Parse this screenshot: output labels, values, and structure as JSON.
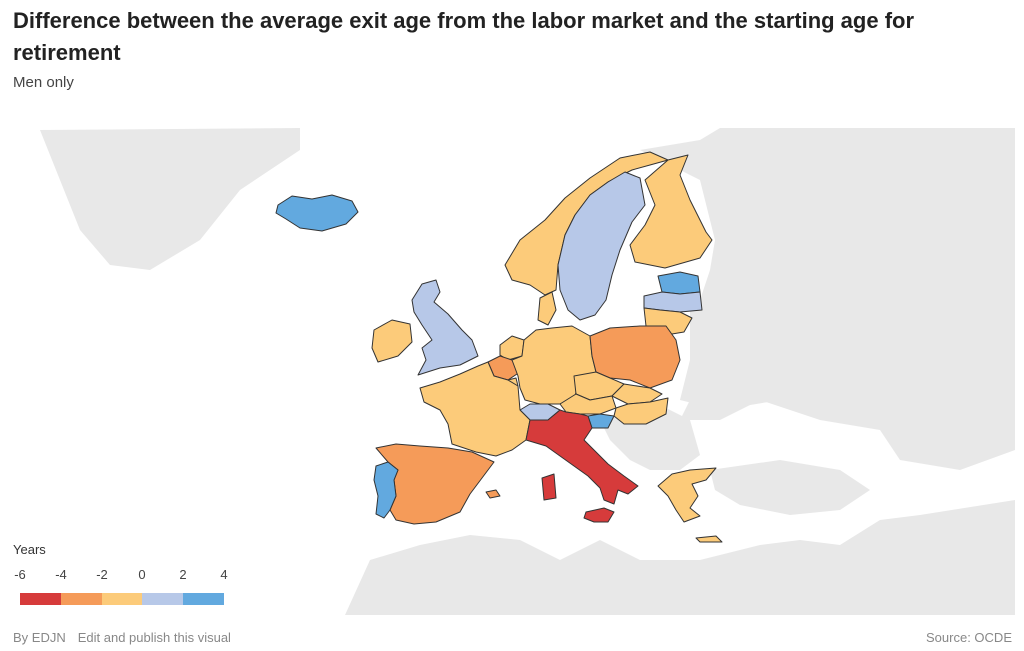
{
  "header": {
    "title": "Difference between the average exit age from the labor market and the starting age for retirement",
    "subtitle": "Men only"
  },
  "legend": {
    "title": "Years",
    "ticks": [
      "-6",
      "-4",
      "-2",
      "0",
      "2",
      "4"
    ],
    "colors": [
      "#d63b3b",
      "#f59b59",
      "#fccb7a",
      "#b7c8e8",
      "#62a9df"
    ]
  },
  "footer": {
    "by": "By EDJN",
    "edit_link": "Edit and publish this visual",
    "source": "Source: OCDE"
  },
  "map_data": {
    "type": "choropleth",
    "value_unit": "years",
    "bins": [
      {
        "range": [
          -6,
          -4
        ],
        "color": "#d63b3b",
        "countries": [
          "Italy"
        ]
      },
      {
        "range": [
          -4,
          -2
        ],
        "color": "#f59b59",
        "countries": [
          "Spain",
          "Poland",
          "Belgium"
        ]
      },
      {
        "range": [
          -2,
          0
        ],
        "color": "#fccb7a",
        "countries": [
          "France",
          "Germany",
          "Ireland",
          "Norway",
          "Finland",
          "Denmark",
          "Netherlands",
          "Austria",
          "Czechia",
          "Slovakia",
          "Hungary",
          "Greece",
          "Lithuania",
          "Luxembourg"
        ]
      },
      {
        "range": [
          0,
          2
        ],
        "color": "#b7c8e8",
        "countries": [
          "United Kingdom",
          "Sweden",
          "Switzerland",
          "Latvia"
        ]
      },
      {
        "range": [
          2,
          4
        ],
        "color": "#62a9df",
        "countries": [
          "Iceland",
          "Portugal",
          "Estonia",
          "Slovenia"
        ]
      }
    ]
  }
}
